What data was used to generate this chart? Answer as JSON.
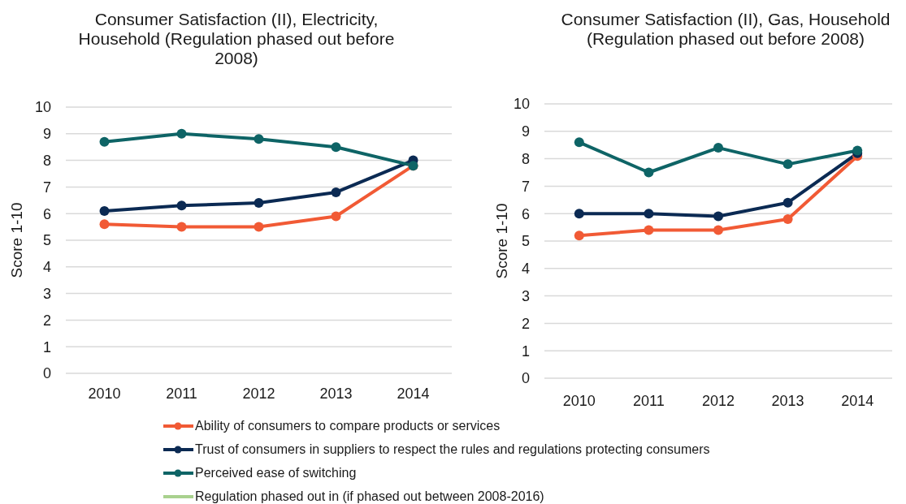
{
  "chart_data": [
    {
      "type": "line",
      "title": "Consumer Satisfaction (II), Electricity, Household (Regulation phased out before 2008)",
      "ylabel": "Score 1-10",
      "categories": [
        "2010",
        "2011",
        "2012",
        "2013",
        "2014"
      ],
      "series": [
        {
          "name": "Ability of consumers to compare products or services",
          "color": "#f15a35",
          "values": [
            5.6,
            5.5,
            5.5,
            5.9,
            7.8
          ]
        },
        {
          "name": "Trust of consumers in suppliers to respect the rules and regulations protecting consumers",
          "color": "#0b2a53",
          "values": [
            6.1,
            6.3,
            6.4,
            6.8,
            8.0
          ]
        },
        {
          "name": "Perceived ease of switching",
          "color": "#0e6466",
          "values": [
            8.7,
            9.0,
            8.8,
            8.5,
            7.8
          ]
        },
        {
          "name": "Regulation phased out in (if phased out between 2008-2016)",
          "color": "#a9d18e",
          "marker": "none",
          "values": [
            null,
            null,
            null,
            null,
            null
          ]
        }
      ],
      "ylim": [
        0,
        10
      ],
      "yticks": [
        0,
        1,
        2,
        3,
        4,
        5,
        6,
        7,
        8,
        9,
        10
      ],
      "grid": "y",
      "legend": "bottom",
      "marker": "circle",
      "line_style": "solid"
    },
    {
      "type": "line",
      "title": "Consumer Satisfaction (II), Gas, Household (Regulation phased out before 2008)",
      "ylabel": "Score 1-10",
      "categories": [
        "2010",
        "2011",
        "2012",
        "2013",
        "2014"
      ],
      "series": [
        {
          "color": "#f15a35",
          "values": [
            5.2,
            5.4,
            5.4,
            5.8,
            8.1
          ]
        },
        {
          "color": "#0b2a53",
          "values": [
            6.0,
            6.0,
            5.9,
            6.4,
            8.2
          ]
        },
        {
          "color": "#0e6466",
          "values": [
            8.6,
            7.5,
            8.4,
            7.8,
            8.3
          ]
        }
      ],
      "ylim": [
        0,
        10
      ],
      "yticks": [
        0,
        1,
        2,
        3,
        4,
        5,
        6,
        7,
        8,
        9,
        10
      ],
      "grid": "y",
      "marker": "circle",
      "line_style": "solid"
    }
  ]
}
